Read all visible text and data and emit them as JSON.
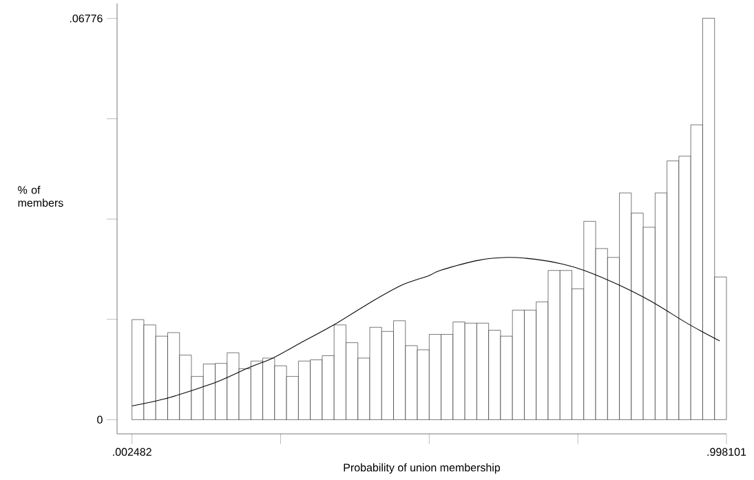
{
  "chart_data": {
    "type": "histogram",
    "xlabel": "Probability of union membership",
    "ylabel": "% of members",
    "bins": [
      0.002482,
      0.022394,
      0.042307,
      0.062219,
      0.082132,
      0.102044,
      0.121956,
      0.141869,
      0.161781,
      0.181694,
      0.201606,
      0.221518,
      0.241431,
      0.261343,
      0.281256,
      0.301168,
      0.32108,
      0.340993,
      0.360905,
      0.380818,
      0.40073,
      0.420642,
      0.440555,
      0.460467,
      0.48038,
      0.500292,
      0.520204,
      0.540117,
      0.560029,
      0.579942,
      0.599854,
      0.619766,
      0.639679,
      0.659591,
      0.679504,
      0.699416,
      0.719328,
      0.739241,
      0.759153,
      0.779066,
      0.798978,
      0.81889,
      0.838803,
      0.858715,
      0.878628,
      0.89854,
      0.918452,
      0.938365,
      0.958277,
      0.97819,
      0.998101
    ],
    "values": [
      0.0169,
      0.016,
      0.0141,
      0.0147,
      0.0109,
      0.0073,
      0.0094,
      0.0095,
      0.0113,
      0.0086,
      0.0099,
      0.0104,
      0.0091,
      0.0073,
      0.0099,
      0.0101,
      0.0108,
      0.016,
      0.013,
      0.0104,
      0.0156,
      0.0149,
      0.0167,
      0.0125,
      0.0118,
      0.0144,
      0.0144,
      0.0165,
      0.0163,
      0.0163,
      0.0151,
      0.0141,
      0.0185,
      0.0185,
      0.0199,
      0.0252,
      0.0252,
      0.0221,
      0.0335,
      0.0289,
      0.0274,
      0.0383,
      0.0349,
      0.0325,
      0.0383,
      0.0437,
      0.0445,
      0.0498,
      0.0678,
      0.0241
    ],
    "color": "#ffffff",
    "xlim": [
      -0.0225,
      0.998101
    ],
    "ylim": [
      -0.0024,
      0.0703
    ],
    "xticks": [
      {
        "value": 0.002482,
        "label": ".002482"
      },
      {
        "value": 0.2514,
        "label": null
      },
      {
        "value": 0.5003,
        "label": null
      },
      {
        "value": 0.7492,
        "label": null
      },
      {
        "value": 0.998101,
        "label": ".998101"
      }
    ],
    "yticks": [
      0,
      {
        "value": 0.01694,
        "label": null
      },
      {
        "value": 0.03388,
        "label": null
      },
      {
        "value": 0.05082,
        "label": null
      },
      {
        "value": 0.06776,
        "label": ".06776"
      }
    ],
    "series": [
      {
        "type": "line",
        "color": "#000000",
        "x": [
          0.0025,
          0.0569,
          0.1023,
          0.1476,
          0.201,
          0.2384,
          0.2837,
          0.3404,
          0.405,
          0.4538,
          0.4992,
          0.5185,
          0.582,
          0.6319,
          0.6772,
          0.7226,
          0.76,
          0.8167,
          0.8734,
          0.9335,
          0.9868
        ],
        "values": [
          0.0023,
          0.0035,
          0.0049,
          0.0065,
          0.0089,
          0.0104,
          0.0129,
          0.016,
          0.02,
          0.0227,
          0.0243,
          0.0252,
          0.0269,
          0.0274,
          0.0271,
          0.0263,
          0.0252,
          0.0228,
          0.0199,
          0.0162,
          0.0133
        ]
      }
    ]
  }
}
